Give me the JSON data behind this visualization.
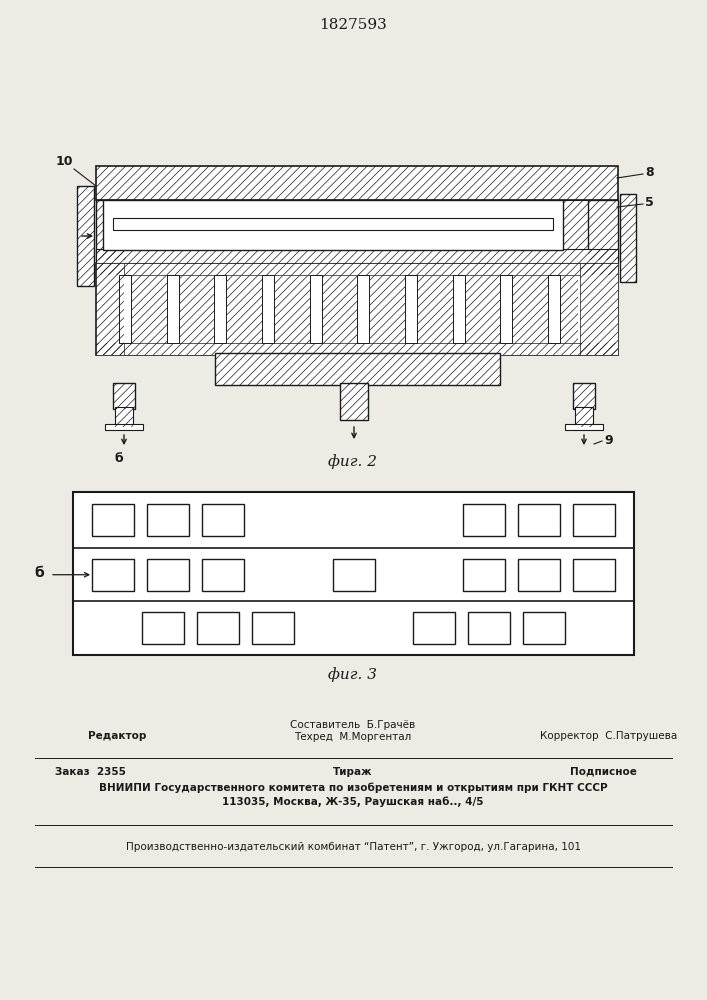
{
  "patent_number": "1827593",
  "fig2_label": "фиг. 2",
  "fig3_label": "фиг. 3",
  "label_5": "5",
  "label_8": "8",
  "label_9": "9",
  "label_10": "10",
  "label_b_fig2": "б",
  "label_b_fig3": "б",
  "footer_sostavitel": "Составитель  Б.Грачёв",
  "footer_tekhred": "Техред  М.Моргентал",
  "footer_editor": "Редактор",
  "footer_korrektor": "Корректор  С.Патрушева",
  "footer_zakaz": "Заказ  2355",
  "footer_tirazh": "Тираж",
  "footer_podpisnoe": "Подписное",
  "footer_vnipi": "ВНИИПИ Государственного комитета по изобретениям и открытиям при ГКНТ СССР",
  "footer_address": "113035, Москва, Ж-35, Раушская наб.., 4/5",
  "footer_publisher": "Производственно-издательский комбинат “Патент”, г. Ужгород, ул.Гагарина, 101",
  "bg_color": "#eeebe5",
  "line_color": "#1a1a1a",
  "white": "#ffffff",
  "hatch_lw": 0.5
}
